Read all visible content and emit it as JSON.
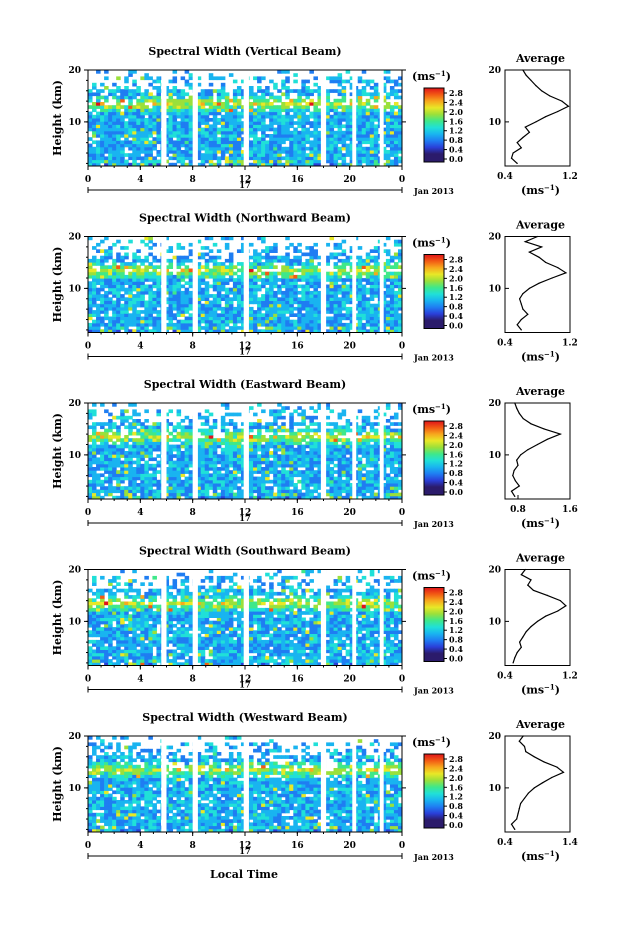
{
  "figure": {
    "xlabel": "Local Time",
    "ylabel": "Height (km)",
    "date_label": "Jan 2013",
    "day_label": "17",
    "colorbar_unit": "(ms",
    "colorbar_unit_exp": "−1",
    "colorbar_unit_close": ")",
    "colorbar_ticks": [
      "2.8",
      "2.4",
      "2.0",
      "1.6",
      "1.2",
      "0.8",
      "0.4",
      "0.0"
    ],
    "average_title": "Average",
    "average_unit": "(ms",
    "average_unit_exp": "−1",
    "average_unit_close": ")",
    "x_ticks": [
      "0",
      "4",
      "8",
      "12",
      "16",
      "20",
      "0"
    ],
    "y_ticks": [
      "20",
      "10"
    ],
    "colorscale": [
      "#2b1b6b",
      "#2a3fd9",
      "#1f7df2",
      "#19b4f0",
      "#20e0d8",
      "#3fe88a",
      "#9be03a",
      "#e8e827",
      "#f7a81d",
      "#f25a14",
      "#e0141a"
    ]
  },
  "chart_data": [
    {
      "type": "heatmap",
      "title": "Spectral Width (Vertical Beam)",
      "x_range_hours": [
        0,
        24
      ],
      "y_range_km": [
        1.5,
        20
      ],
      "color_range_ms": [
        0.0,
        3.0
      ],
      "data_gaps_hours": [
        [
          5.6,
          6.0
        ],
        [
          8.0,
          8.4
        ],
        [
          11.9,
          12.3
        ],
        [
          17.8,
          18.2
        ],
        [
          20.2,
          20.5
        ],
        [
          22.3,
          22.6
        ]
      ],
      "average_profile": {
        "title": "Average",
        "x_ticks": [
          "0.4",
          "1.2"
        ],
        "x_range": [
          0.4,
          1.2
        ],
        "height_km": [
          2,
          3,
          4,
          5,
          6,
          7,
          8,
          9,
          10,
          11,
          12,
          13,
          14,
          15,
          16,
          17,
          18,
          19,
          20
        ],
        "width_ms": [
          0.55,
          0.48,
          0.5,
          0.6,
          0.55,
          0.62,
          0.7,
          0.65,
          0.78,
          0.9,
          1.05,
          1.18,
          1.1,
          0.95,
          0.85,
          0.78,
          0.72,
          0.66,
          0.62
        ]
      }
    },
    {
      "type": "heatmap",
      "title": "Spectral Width (Northward Beam)",
      "x_range_hours": [
        0,
        24
      ],
      "y_range_km": [
        1.5,
        20
      ],
      "color_range_ms": [
        0.0,
        3.0
      ],
      "data_gaps_hours": [
        [
          5.6,
          6.0
        ],
        [
          8.0,
          8.4
        ],
        [
          11.9,
          12.3
        ],
        [
          17.8,
          18.2
        ],
        [
          20.2,
          20.5
        ],
        [
          22.3,
          22.6
        ]
      ],
      "average_profile": {
        "title": "Average",
        "x_ticks": [
          "0.4",
          "1.2"
        ],
        "x_range": [
          0.4,
          1.2
        ],
        "height_km": [
          2,
          3,
          4,
          5,
          6,
          7,
          8,
          9,
          10,
          11,
          12,
          13,
          14,
          15,
          16,
          17,
          18,
          19,
          20
        ],
        "width_ms": [
          0.6,
          0.55,
          0.6,
          0.68,
          0.62,
          0.6,
          0.58,
          0.62,
          0.7,
          0.82,
          0.98,
          1.15,
          1.05,
          0.9,
          0.82,
          0.7,
          0.85,
          0.65,
          0.8
        ]
      }
    },
    {
      "type": "heatmap",
      "title": "Spectral Width (Eastward Beam)",
      "x_range_hours": [
        0,
        24
      ],
      "y_range_km": [
        1.5,
        20
      ],
      "color_range_ms": [
        0.0,
        3.0
      ],
      "data_gaps_hours": [
        [
          5.6,
          6.0
        ],
        [
          8.0,
          8.4
        ],
        [
          11.9,
          12.3
        ],
        [
          17.8,
          18.2
        ],
        [
          20.2,
          20.5
        ],
        [
          22.3,
          22.6
        ]
      ],
      "average_profile": {
        "title": "Average",
        "x_ticks": [
          "0.8",
          "1.6"
        ],
        "x_range": [
          0.6,
          1.6
        ],
        "height_km": [
          2,
          3,
          4,
          5,
          6,
          7,
          8,
          9,
          10,
          11,
          12,
          13,
          14,
          15,
          16,
          17,
          18,
          19,
          20
        ],
        "width_ms": [
          0.75,
          0.7,
          0.82,
          0.76,
          0.72,
          0.74,
          0.8,
          0.78,
          0.84,
          0.95,
          1.1,
          1.25,
          1.45,
          1.2,
          1.0,
          0.88,
          0.82,
          0.78,
          0.75
        ]
      }
    },
    {
      "type": "heatmap",
      "title": "Spectral Width (Southward Beam)",
      "x_range_hours": [
        0,
        24
      ],
      "y_range_km": [
        1.5,
        20
      ],
      "color_range_ms": [
        0.0,
        3.0
      ],
      "data_gaps_hours": [
        [
          5.6,
          6.0
        ],
        [
          8.0,
          8.4
        ],
        [
          11.9,
          12.3
        ],
        [
          17.8,
          18.2
        ],
        [
          20.2,
          20.5
        ],
        [
          22.3,
          22.6
        ]
      ],
      "average_profile": {
        "title": "Average",
        "x_ticks": [
          "0.4",
          "1.2"
        ],
        "x_range": [
          0.4,
          1.2
        ],
        "height_km": [
          2,
          3,
          4,
          5,
          6,
          7,
          8,
          9,
          10,
          11,
          12,
          13,
          14,
          15,
          16,
          17,
          18,
          19,
          20
        ],
        "width_ms": [
          0.5,
          0.52,
          0.55,
          0.6,
          0.58,
          0.62,
          0.66,
          0.72,
          0.8,
          0.9,
          1.05,
          1.15,
          1.08,
          0.92,
          0.75,
          0.68,
          0.72,
          0.6,
          0.65
        ]
      }
    },
    {
      "type": "heatmap",
      "title": "Spectral Width (Westward Beam)",
      "x_range_hours": [
        0,
        24
      ],
      "y_range_km": [
        1.5,
        20
      ],
      "color_range_ms": [
        0.0,
        3.0
      ],
      "data_gaps_hours": [
        [
          5.6,
          6.0
        ],
        [
          8.0,
          8.4
        ],
        [
          11.9,
          12.3
        ],
        [
          17.8,
          18.2
        ],
        [
          20.2,
          20.5
        ],
        [
          22.3,
          22.6
        ]
      ],
      "average_profile": {
        "title": "Average",
        "x_ticks": [
          "0.4",
          "1.4"
        ],
        "x_range": [
          0.4,
          1.4
        ],
        "height_km": [
          2,
          3,
          4,
          5,
          6,
          7,
          8,
          9,
          10,
          11,
          12,
          13,
          14,
          15,
          16,
          17,
          18,
          19,
          20
        ],
        "width_ms": [
          0.55,
          0.5,
          0.58,
          0.6,
          0.62,
          0.64,
          0.7,
          0.76,
          0.85,
          0.98,
          1.12,
          1.3,
          1.2,
          1.0,
          0.85,
          0.72,
          0.7,
          0.62,
          0.68
        ]
      }
    }
  ]
}
